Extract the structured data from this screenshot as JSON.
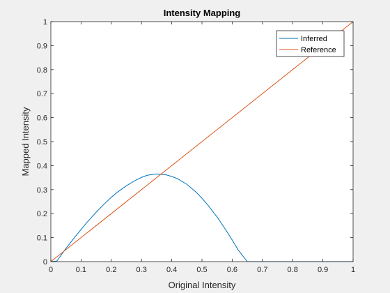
{
  "chart_data": {
    "type": "line",
    "title": "Intensity Mapping",
    "xlabel": "Original Intensity",
    "ylabel": "Mapped Intensity",
    "xlim": [
      0,
      1
    ],
    "ylim": [
      0,
      1
    ],
    "xticks": [
      0,
      0.1,
      0.2,
      0.3,
      0.4,
      0.5,
      0.6,
      0.7,
      0.8,
      0.9,
      1
    ],
    "yticks": [
      0,
      0.1,
      0.2,
      0.3,
      0.4,
      0.5,
      0.6,
      0.7,
      0.8,
      0.9,
      1
    ],
    "xtick_labels": [
      "0",
      "0.1",
      "0.2",
      "0.3",
      "0.4",
      "0.5",
      "0.6",
      "0.7",
      "0.8",
      "0.9",
      "1"
    ],
    "ytick_labels": [
      "0",
      "0.1",
      "0.2",
      "0.3",
      "0.4",
      "0.5",
      "0.6",
      "0.7",
      "0.8",
      "0.9",
      "1"
    ],
    "grid": false,
    "legend_position": "top-right",
    "series": [
      {
        "name": "Inferred",
        "color": "#0072BD",
        "x": [
          0,
          0.02,
          0.05,
          0.08,
          0.1,
          0.12,
          0.15,
          0.18,
          0.2,
          0.22,
          0.25,
          0.28,
          0.3,
          0.32,
          0.35,
          0.38,
          0.4,
          0.42,
          0.45,
          0.48,
          0.5,
          0.52,
          0.55,
          0.58,
          0.6,
          0.62,
          0.65,
          0.68,
          0.69,
          0.7,
          0.75,
          0.8,
          0.85,
          0.9,
          0.95,
          1
        ],
        "y": [
          0,
          0.0025,
          0.055,
          0.103,
          0.134,
          0.164,
          0.206,
          0.244,
          0.268,
          0.289,
          0.316,
          0.339,
          0.351,
          0.36,
          0.365,
          0.362,
          0.355,
          0.345,
          0.322,
          0.29,
          0.264,
          0.235,
          0.186,
          0.13,
          0.09,
          0.048,
          0.0,
          0.0,
          0.0,
          0.0,
          0.0,
          0.0,
          0.0,
          0.0,
          0.0,
          0.0
        ]
      },
      {
        "name": "Reference",
        "color": "#D95319",
        "x": [
          0,
          1
        ],
        "y": [
          0,
          1
        ]
      }
    ]
  }
}
